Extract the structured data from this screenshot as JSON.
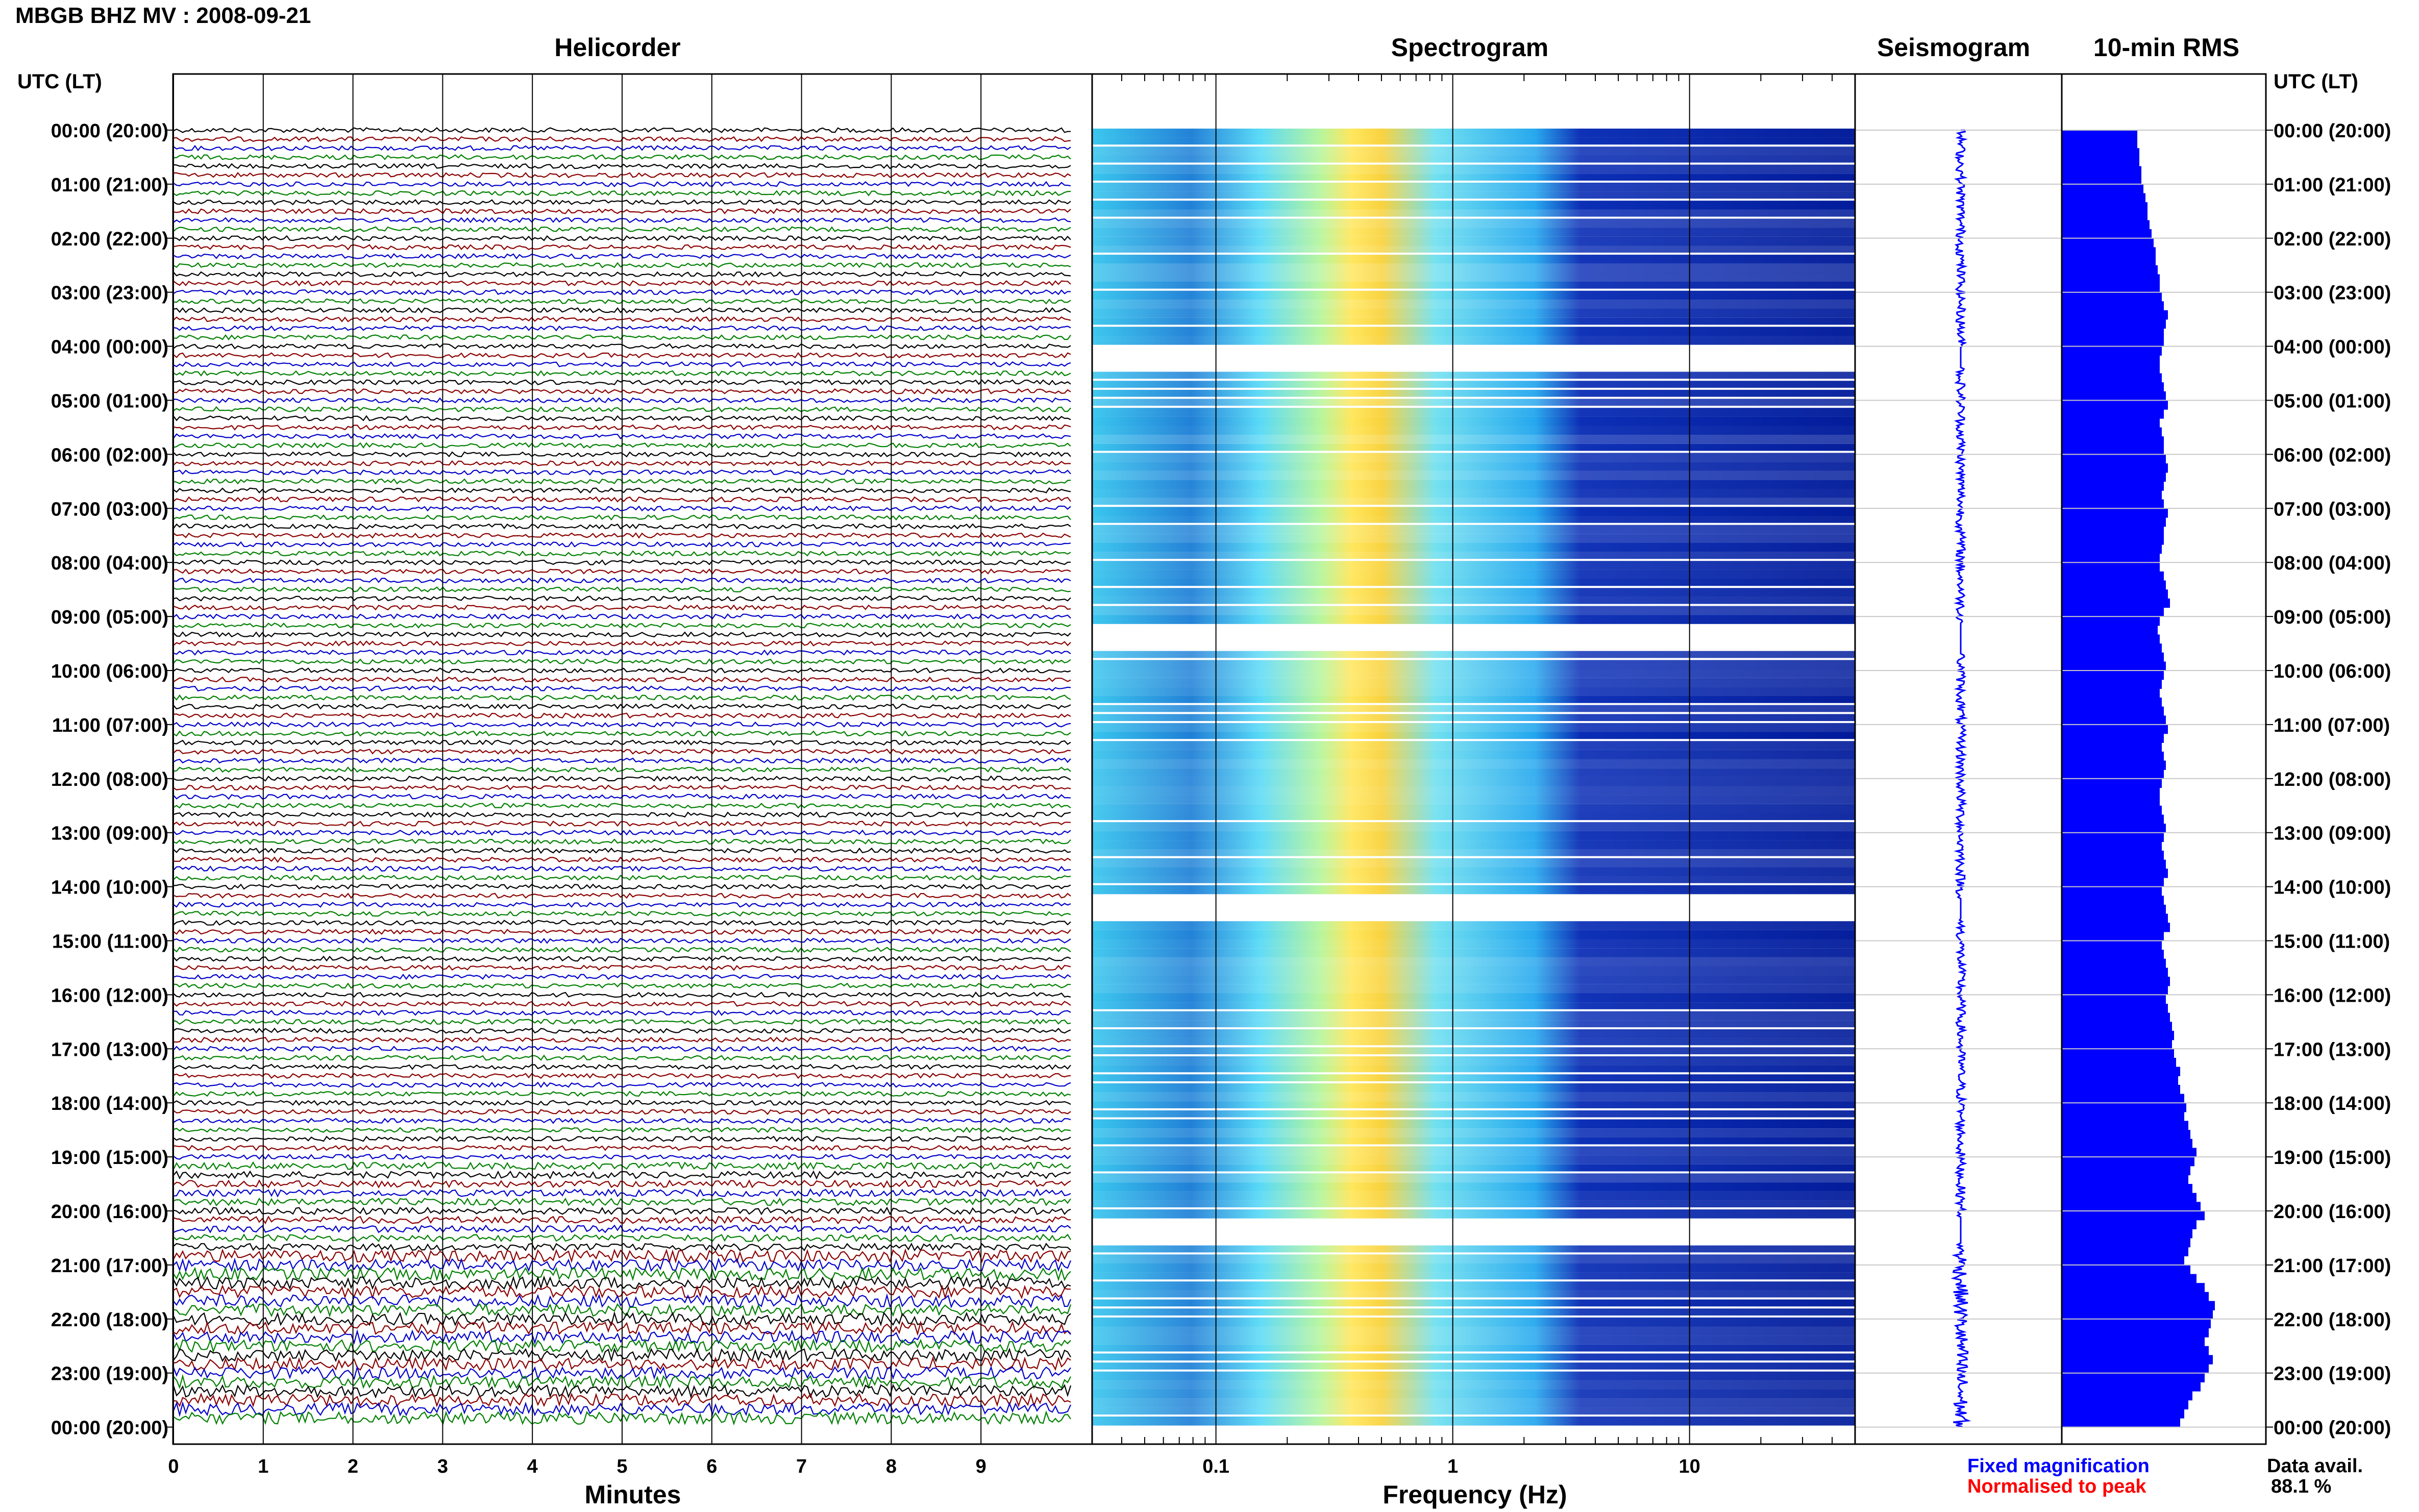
{
  "header": {
    "title": "MBGB BHZ MV : 2008-09-21"
  },
  "panels": {
    "helicorder": "Helicorder",
    "spectrogram": "Spectrogram",
    "seismogram": "Seismogram",
    "rms": "10-min RMS"
  },
  "axes": {
    "time_header": "UTC (LT)",
    "minutes_label": "Minutes",
    "frequency_label": "Frequency (Hz)",
    "minute_ticks": [
      "0",
      "1",
      "2",
      "3",
      "4",
      "5",
      "6",
      "7",
      "8",
      "9"
    ],
    "frequency_ticks": [
      "0.1",
      "1",
      "10"
    ],
    "hour_labels": [
      "00:00 (20:00)",
      "01:00 (21:00)",
      "02:00 (22:00)",
      "03:00 (23:00)",
      "04:00 (00:00)",
      "05:00 (01:00)",
      "06:00 (02:00)",
      "07:00 (03:00)",
      "08:00 (04:00)",
      "09:00 (05:00)",
      "10:00 (06:00)",
      "11:00 (07:00)",
      "12:00 (08:00)",
      "13:00 (09:00)",
      "14:00 (10:00)",
      "15:00 (11:00)",
      "16:00 (12:00)",
      "17:00 (13:00)",
      "18:00 (14:00)",
      "19:00 (15:00)",
      "20:00 (16:00)",
      "21:00 (17:00)",
      "22:00 (18:00)",
      "23:00 (19:00)",
      "00:00 (20:00)"
    ]
  },
  "legend": {
    "fixed": "Fixed magnification",
    "normalised": "Normalised to peak"
  },
  "data_availability": {
    "label": "Data avail.",
    "value": "88.1 %"
  },
  "colors": {
    "trace_cycle": [
      "#000000",
      "#8b0000",
      "#0000cc",
      "#008000"
    ],
    "rms_bar": "#0000ff",
    "seismogram": "#0000ff",
    "spectrogram_low": "#00008b",
    "spectrogram_high": "#ffff00"
  },
  "chart_data": {
    "type": "heatmap",
    "title": "MBGB BHZ MV : 2008-09-21",
    "xlabel": "Frequency (Hz)",
    "x_scale": "log",
    "xlim": [
      0.03,
      50
    ],
    "ylim_hours": [
      0,
      24
    ],
    "rms_series": {
      "name": "10-min RMS",
      "values_relative": [
        0.37,
        0.37,
        0.38,
        0.38,
        0.39,
        0.39,
        0.4,
        0.41,
        0.42,
        0.42,
        0.43,
        0.44,
        0.45,
        0.46,
        0.46,
        0.47,
        0.48,
        0.48,
        0.49,
        0.5,
        0.52,
        0.51,
        0.5,
        0.5,
        0.49,
        0.48,
        0.48,
        0.49,
        0.5,
        0.51,
        0.52,
        0.5,
        0.48,
        0.49,
        0.5,
        0.5,
        0.51,
        0.52,
        0.51,
        0.5,
        0.49,
        0.5,
        0.52,
        0.51,
        0.5,
        0.5,
        0.49,
        0.48,
        0.48,
        0.5,
        0.51,
        0.52,
        0.53,
        0.5,
        0.48,
        0.47,
        0.48,
        0.49,
        0.5,
        0.51,
        0.5,
        0.49,
        0.48,
        0.49,
        0.5,
        0.51,
        0.52,
        0.5,
        0.49,
        0.5,
        0.51,
        0.5,
        0.49,
        0.48,
        0.48,
        0.49,
        0.5,
        0.51,
        0.5,
        0.49,
        0.5,
        0.51,
        0.52,
        0.5,
        0.49,
        0.5,
        0.51,
        0.52,
        0.53,
        0.5,
        0.49,
        0.5,
        0.51,
        0.52,
        0.53,
        0.52,
        0.51,
        0.52,
        0.53,
        0.54,
        0.55,
        0.54,
        0.55,
        0.56,
        0.58,
        0.57,
        0.58,
        0.6,
        0.61,
        0.6,
        0.62,
        0.63,
        0.64,
        0.66,
        0.65,
        0.63,
        0.62,
        0.64,
        0.66,
        0.68,
        0.7,
        0.66,
        0.64,
        0.63,
        0.62,
        0.6,
        0.63,
        0.66,
        0.7,
        0.72,
        0.75,
        0.74,
        0.73,
        0.72,
        0.7,
        0.72,
        0.74,
        0.72,
        0.7,
        0.68,
        0.64,
        0.62,
        0.6,
        0.58
      ]
    },
    "data_gaps_hours": [
      [
        4.0,
        4.4
      ],
      [
        9.1,
        9.7
      ],
      [
        14.2,
        14.6
      ],
      [
        20.1,
        20.6
      ]
    ]
  }
}
